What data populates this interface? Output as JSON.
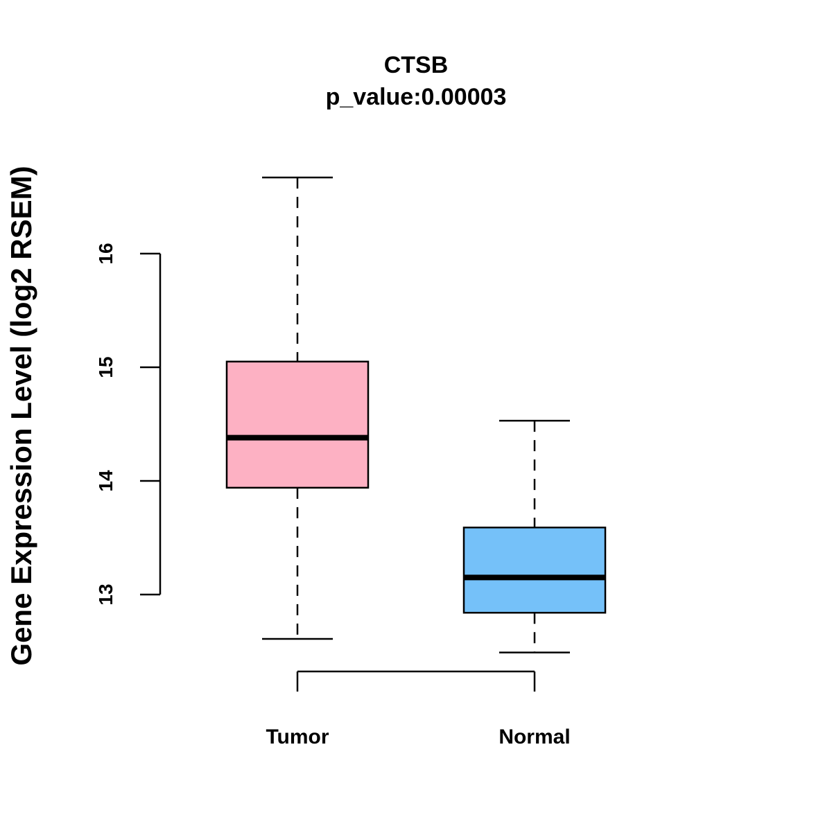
{
  "chart_data": {
    "type": "boxplot",
    "title": "CTSB",
    "subtitle": "p_value:0.00003",
    "xlabel": "",
    "ylabel": "Gene Expression Level (log2 RSEM)",
    "yticks": [
      13,
      14,
      15,
      16
    ],
    "ylim": [
      12.3,
      16.8
    ],
    "categories": [
      "Tumor",
      "Normal"
    ],
    "series": [
      {
        "name": "Tumor",
        "color": "#FDB1C3",
        "whisker_low": 12.61,
        "q1": 13.94,
        "median": 14.38,
        "q3": 15.05,
        "whisker_high": 16.67
      },
      {
        "name": "Normal",
        "color": "#75C1F9",
        "whisker_low": 12.49,
        "q1": 12.84,
        "median": 13.15,
        "q3": 13.59,
        "whisker_high": 14.53
      }
    ]
  }
}
